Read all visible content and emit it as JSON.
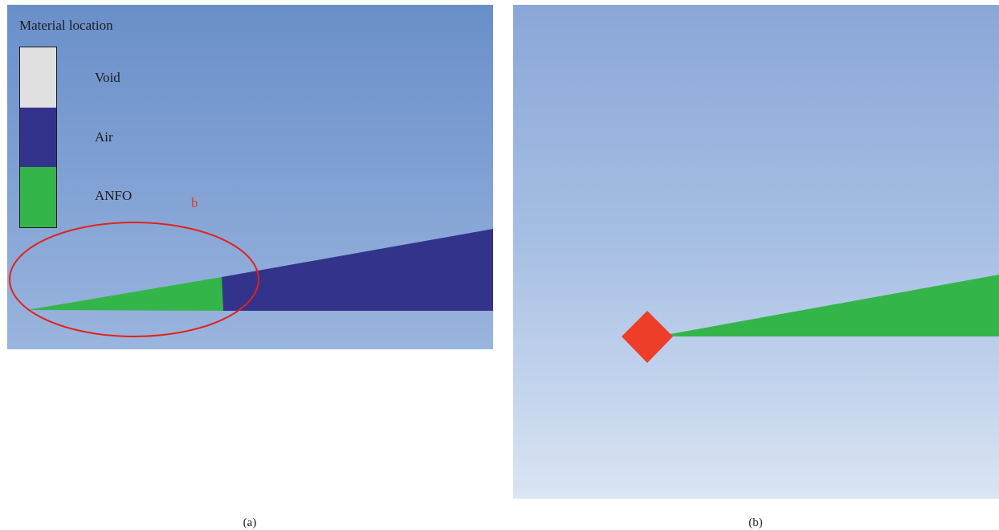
{
  "panel_a": {
    "legend": {
      "title": "Material location",
      "items": [
        {
          "label": "Void",
          "color": "#e0e0e0"
        },
        {
          "label": "Air",
          "color": "#34338c"
        },
        {
          "label": "ANFO",
          "color": "#33b54a"
        }
      ]
    },
    "annotation": "b",
    "highlight_color": "#e0231c"
  },
  "panel_b": {
    "marker_color": "#ee3e2a",
    "charge_color": "#33b54a"
  },
  "captions": {
    "a": "(a)",
    "b": "(b)"
  }
}
